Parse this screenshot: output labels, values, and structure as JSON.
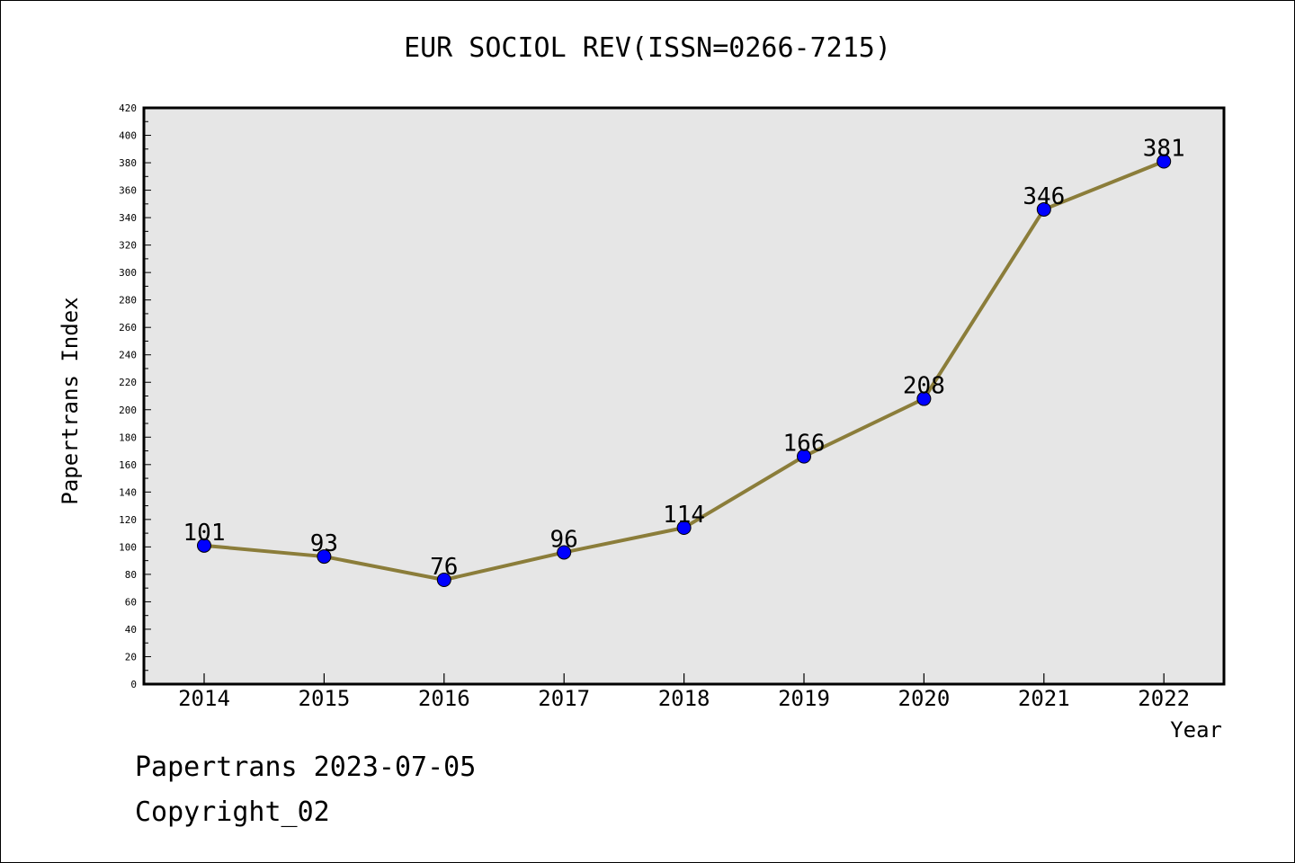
{
  "title": "EUR SOCIOL REV(ISSN=0266-7215)",
  "footer": {
    "line1": "Papertrans 2023-07-05",
    "line2": "Copyright_02"
  },
  "chart_data": {
    "type": "line",
    "title": "EUR SOCIOL REV(ISSN=0266-7215)",
    "xlabel": "Year",
    "ylabel": "Papertrans Index",
    "x": [
      "2014",
      "2015",
      "2016",
      "2017",
      "2018",
      "2019",
      "2020",
      "2021",
      "2022"
    ],
    "series": [
      {
        "values": [
          101,
          93,
          76,
          96,
          114,
          166,
          208,
          346,
          381
        ]
      }
    ],
    "ylim": [
      0,
      420
    ],
    "y_ticks": [
      0,
      20,
      40,
      60,
      80,
      100,
      120,
      140,
      160,
      180,
      200,
      220,
      240,
      260,
      280,
      300,
      320,
      340,
      360,
      380,
      400,
      420
    ],
    "grid": false,
    "legend": "none",
    "colors": {
      "line": "#8B7D3A",
      "marker": "#0000FF",
      "plot_bg": "#E6E6E6"
    }
  }
}
